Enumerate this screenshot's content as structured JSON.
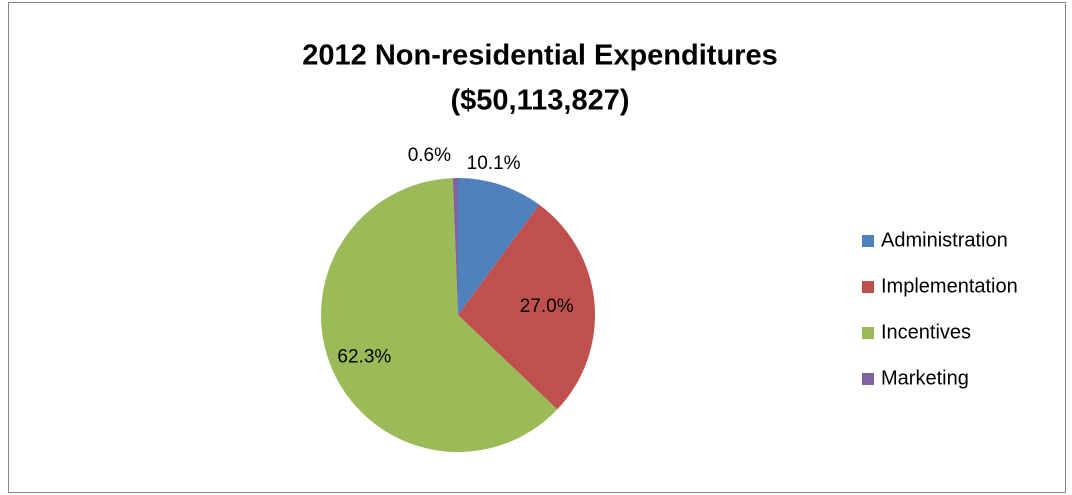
{
  "chart_data": {
    "type": "pie",
    "title": [
      "2012 Non-residential Expenditures",
      "($50,113,827)"
    ],
    "categories": [
      "Administration",
      "Implementation",
      "Incentives",
      "Marketing"
    ],
    "values": [
      10.1,
      27.0,
      62.3,
      0.6
    ],
    "value_labels": [
      "10.1%",
      "27.0%",
      "62.3%",
      "0.6%"
    ],
    "colors": [
      "#4f81bd",
      "#c0504d",
      "#9bbb59",
      "#8064a2"
    ],
    "legend": "right"
  }
}
